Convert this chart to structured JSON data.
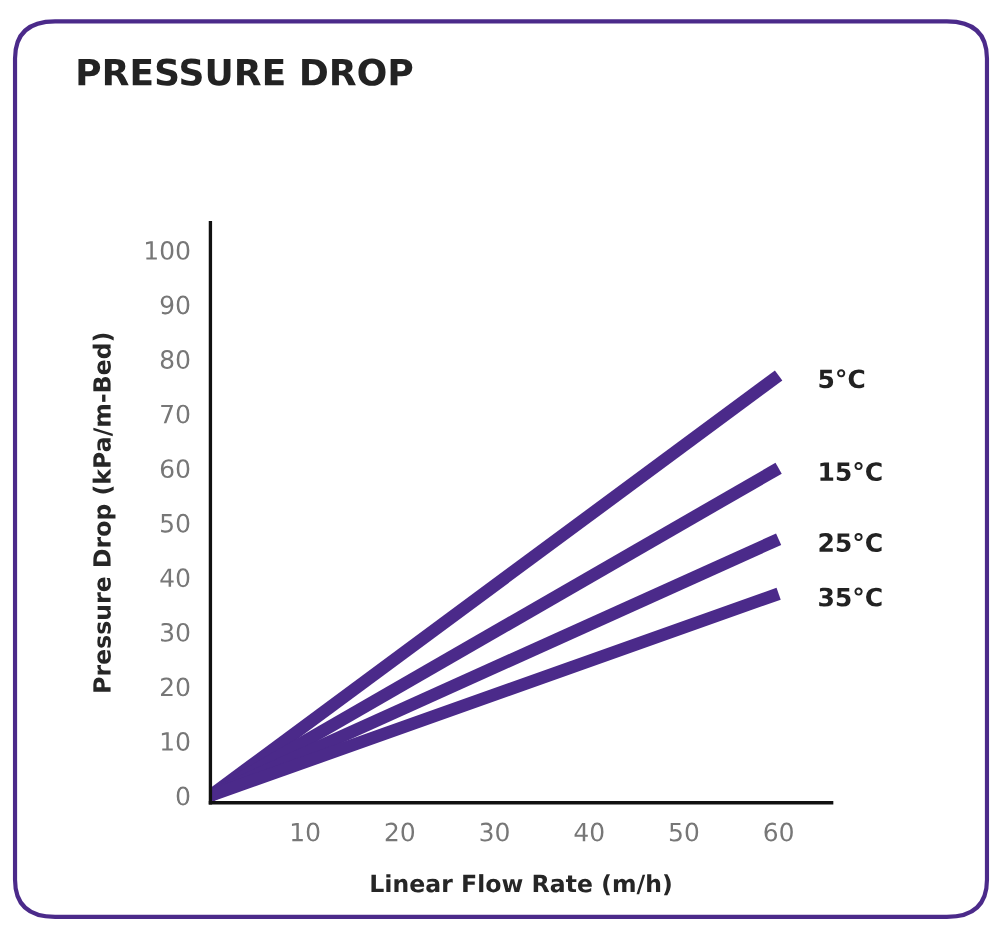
{
  "chart_data": {
    "type": "line",
    "title": "PRESSURE DROP",
    "xlabel": "Linear Flow Rate (m/h)",
    "ylabel": "Pressure Drop (kPa/m-Bed)",
    "xlim": [
      0,
      65.6
    ],
    "xticks": [
      10,
      20,
      30,
      40,
      50,
      60
    ],
    "ylim": [
      -1.3,
      105
    ],
    "yticks": [
      0,
      10,
      20,
      30,
      40,
      50,
      60,
      70,
      80,
      90,
      100
    ],
    "grid": false,
    "legend": false,
    "marker": "none",
    "line_style": "solid",
    "x": [
      0,
      60
    ],
    "series": [
      {
        "name": "5°C",
        "color": "#4b2a8a",
        "values": [
          0,
          77
        ]
      },
      {
        "name": "15°C",
        "color": "#4b2a8a",
        "values": [
          0,
          60
        ]
      },
      {
        "name": "25°C",
        "color": "#4b2a8a",
        "values": [
          0,
          47
        ]
      },
      {
        "name": "35°C",
        "color": "#4b2a8a",
        "values": [
          0,
          37
        ]
      }
    ]
  }
}
